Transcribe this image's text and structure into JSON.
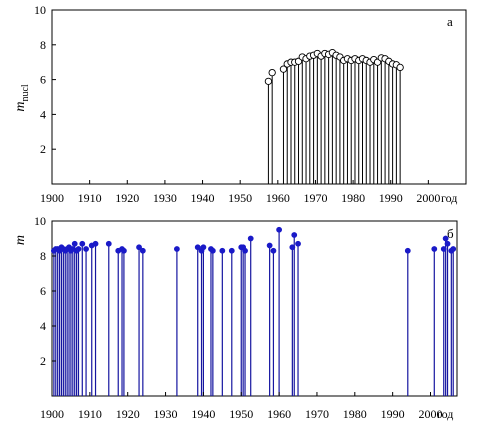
{
  "chart_data": [
    {
      "type": "stem",
      "panel_letter": "а",
      "ylabel_main": "m",
      "ylabel_sub": "nucl",
      "xlabel_unit": "год",
      "xlim": [
        1900,
        2010
      ],
      "ylim": [
        0,
        10
      ],
      "x_ticks": [
        1900,
        1910,
        1920,
        1930,
        1940,
        1950,
        1960,
        1970,
        1980,
        1990,
        2000
      ],
      "y_ticks": [
        2,
        4,
        6,
        8,
        10
      ],
      "grid": false,
      "marker": "open-circle",
      "stem_color": "#000000",
      "marker_color": "#000000",
      "points": [
        {
          "x": 1957.5,
          "y": 5.9
        },
        {
          "x": 1958.5,
          "y": 6.4
        },
        {
          "x": 1961.5,
          "y": 6.6
        },
        {
          "x": 1962.5,
          "y": 6.9
        },
        {
          "x": 1963.5,
          "y": 7.0
        },
        {
          "x": 1964.5,
          "y": 7.0
        },
        {
          "x": 1965.5,
          "y": 7.05
        },
        {
          "x": 1966.5,
          "y": 7.3
        },
        {
          "x": 1967.5,
          "y": 7.2
        },
        {
          "x": 1968.5,
          "y": 7.35
        },
        {
          "x": 1969.5,
          "y": 7.4
        },
        {
          "x": 1970.5,
          "y": 7.5
        },
        {
          "x": 1971.5,
          "y": 7.35
        },
        {
          "x": 1972.5,
          "y": 7.5
        },
        {
          "x": 1973.5,
          "y": 7.45
        },
        {
          "x": 1974.5,
          "y": 7.55
        },
        {
          "x": 1975.5,
          "y": 7.4
        },
        {
          "x": 1976.5,
          "y": 7.3
        },
        {
          "x": 1977.5,
          "y": 7.1
        },
        {
          "x": 1978.5,
          "y": 7.2
        },
        {
          "x": 1979.5,
          "y": 7.1
        },
        {
          "x": 1980.5,
          "y": 7.2
        },
        {
          "x": 1981.5,
          "y": 7.1
        },
        {
          "x": 1982.5,
          "y": 7.2
        },
        {
          "x": 1983.5,
          "y": 7.1
        },
        {
          "x": 1984.5,
          "y": 7.0
        },
        {
          "x": 1985.5,
          "y": 7.15
        },
        {
          "x": 1986.5,
          "y": 7.0
        },
        {
          "x": 1987.5,
          "y": 7.25
        },
        {
          "x": 1988.5,
          "y": 7.2
        },
        {
          "x": 1989.5,
          "y": 7.05
        },
        {
          "x": 1990.5,
          "y": 6.9
        },
        {
          "x": 1991.5,
          "y": 6.85
        },
        {
          "x": 1992.5,
          "y": 6.7
        }
      ]
    },
    {
      "type": "stem",
      "panel_letter": "б",
      "ylabel_main": "m",
      "ylabel_sub": "",
      "xlabel_unit": "год",
      "xlim": [
        1900,
        2007
      ],
      "ylim": [
        0,
        10
      ],
      "x_ticks": [
        1900,
        1910,
        1920,
        1930,
        1940,
        1950,
        1960,
        1970,
        1980,
        1990,
        2000
      ],
      "y_ticks": [
        2,
        4,
        6,
        8,
        10
      ],
      "grid": false,
      "marker": "filled-circle",
      "stem_color": "#1515a0",
      "marker_color": "#1a1ac8",
      "points": [
        {
          "x": 1900.5,
          "y": 8.3
        },
        {
          "x": 1901.0,
          "y": 8.4
        },
        {
          "x": 1901.5,
          "y": 8.4
        },
        {
          "x": 1902.0,
          "y": 8.3
        },
        {
          "x": 1902.5,
          "y": 8.5
        },
        {
          "x": 1903.0,
          "y": 8.4
        },
        {
          "x": 1903.5,
          "y": 8.3
        },
        {
          "x": 1904.0,
          "y": 8.4
        },
        {
          "x": 1904.5,
          "y": 8.5
        },
        {
          "x": 1905.0,
          "y": 8.3
        },
        {
          "x": 1905.5,
          "y": 8.4
        },
        {
          "x": 1906.0,
          "y": 8.7
        },
        {
          "x": 1906.5,
          "y": 8.3
        },
        {
          "x": 1907.0,
          "y": 8.4
        },
        {
          "x": 1908.0,
          "y": 8.7
        },
        {
          "x": 1909.0,
          "y": 8.4
        },
        {
          "x": 1910.5,
          "y": 8.6
        },
        {
          "x": 1911.5,
          "y": 8.7
        },
        {
          "x": 1915.0,
          "y": 8.7
        },
        {
          "x": 1917.5,
          "y": 8.3
        },
        {
          "x": 1918.5,
          "y": 8.4
        },
        {
          "x": 1919.0,
          "y": 8.3
        },
        {
          "x": 1923.0,
          "y": 8.5
        },
        {
          "x": 1924.0,
          "y": 8.3
        },
        {
          "x": 1933.0,
          "y": 8.4
        },
        {
          "x": 1938.5,
          "y": 8.5
        },
        {
          "x": 1939.5,
          "y": 8.3
        },
        {
          "x": 1940.0,
          "y": 8.5
        },
        {
          "x": 1942.0,
          "y": 8.4
        },
        {
          "x": 1942.5,
          "y": 8.3
        },
        {
          "x": 1945.0,
          "y": 8.3
        },
        {
          "x": 1947.5,
          "y": 8.3
        },
        {
          "x": 1950.0,
          "y": 8.5
        },
        {
          "x": 1950.5,
          "y": 8.5
        },
        {
          "x": 1951.0,
          "y": 8.3
        },
        {
          "x": 1952.5,
          "y": 9.0
        },
        {
          "x": 1957.5,
          "y": 8.6
        },
        {
          "x": 1958.5,
          "y": 8.3
        },
        {
          "x": 1960.0,
          "y": 9.5
        },
        {
          "x": 1963.5,
          "y": 8.5
        },
        {
          "x": 1964.0,
          "y": 9.2
        },
        {
          "x": 1965.0,
          "y": 8.7
        },
        {
          "x": 1994.0,
          "y": 8.3
        },
        {
          "x": 2001.0,
          "y": 8.4
        },
        {
          "x": 2003.5,
          "y": 8.4
        },
        {
          "x": 2004.0,
          "y": 9.0
        },
        {
          "x": 2004.5,
          "y": 8.7
        },
        {
          "x": 2005.5,
          "y": 8.3
        },
        {
          "x": 2006.0,
          "y": 8.4
        }
      ]
    }
  ]
}
